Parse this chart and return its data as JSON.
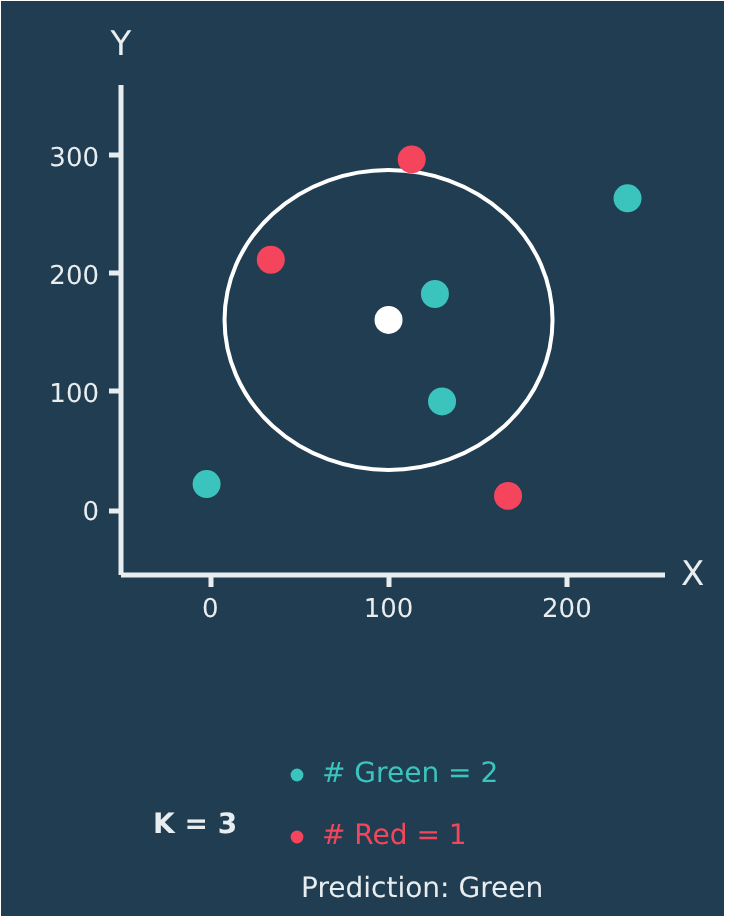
{
  "chart_data": {
    "type": "scatter",
    "xlabel": "X",
    "ylabel": "Y",
    "xlim": [
      -50,
      255
    ],
    "ylim": [
      -55,
      360
    ],
    "xticks": [
      0,
      100,
      200
    ],
    "yticks": [
      0,
      100,
      200,
      300
    ],
    "grid": false,
    "legend": "bottom",
    "marker": "circle",
    "annotations": [
      "K = 3",
      "Prediction: Green"
    ],
    "series": [
      {
        "name": "# Green = 2",
        "color": "#3bc4bd",
        "x": [
          -2,
          126,
          130,
          234
        ],
        "values": [
          22,
          183,
          92,
          264
        ]
      },
      {
        "name": "# Red = 1",
        "color": "#f5455c",
        "x": [
          113,
          34,
          167
        ],
        "values": [
          297,
          212,
          12
        ]
      },
      {
        "color": "#ffffff",
        "x": [
          100
        ],
        "values": [
          161
        ]
      }
    ]
  }
}
